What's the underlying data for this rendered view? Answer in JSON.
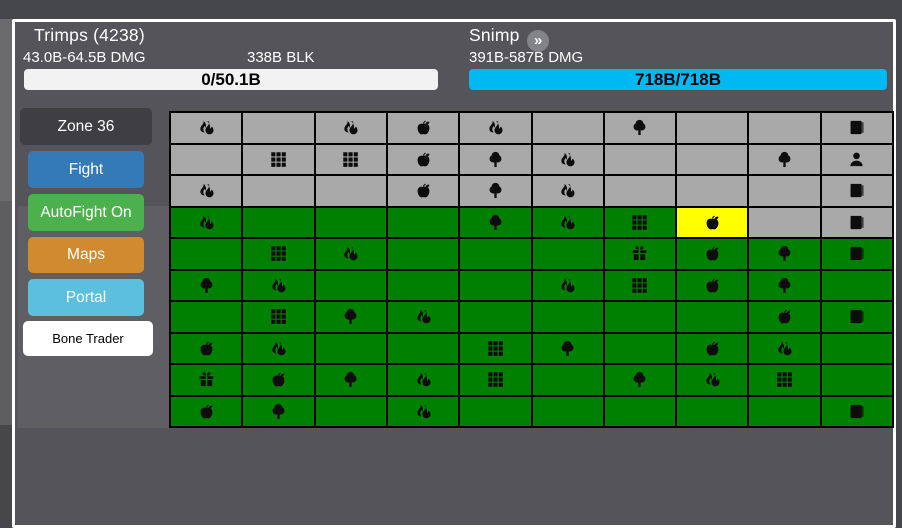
{
  "player": {
    "title": "Trimps (4238)",
    "damage": "43.0B-64.5B DMG",
    "block": "338B BLK",
    "health_bar": {
      "text": "0/50.1B",
      "color": "#f2f2f2"
    }
  },
  "enemy": {
    "name": "Snimp",
    "fast_badge": "»",
    "damage": "391B-587B DMG",
    "health_bar": {
      "text": "718B/718B",
      "color": "#00b8f2"
    }
  },
  "sidebar": {
    "buttons": [
      {
        "label": "Zone 36",
        "color": "#3f3f43"
      },
      {
        "label": "Fight",
        "color": "#337ab7"
      },
      {
        "label": "AutoFight On",
        "color": "#4cb04c"
      },
      {
        "label": "Maps",
        "color": "#cf8b2e"
      },
      {
        "label": "Portal",
        "color": "#5bc0de"
      },
      {
        "label": "Bone Trader",
        "color": "#ffffff",
        "text_color": "#000000"
      }
    ]
  },
  "battle_grid": {
    "rows": 10,
    "columns": 10,
    "cell_colors": {
      "pending": "#a9a9a9",
      "cleared": "#008000",
      "current": "#ffff00"
    },
    "icon_names": [
      "fire",
      "grid",
      "apple",
      "tree",
      "book",
      "person",
      "gift"
    ],
    "cells": [
      [
        "p:fire",
        "p:",
        "p:fire",
        "p:apple",
        "p:fire",
        "p:",
        "p:tree",
        "p:",
        "p:",
        "p:book"
      ],
      [
        "p:",
        "p:grid",
        "p:grid",
        "p:apple",
        "p:tree",
        "p:fire",
        "p:",
        "p:",
        "p:tree",
        "p:person"
      ],
      [
        "p:fire",
        "p:",
        "p:",
        "p:apple",
        "p:tree",
        "p:fire",
        "p:",
        "p:",
        "p:",
        "p:book"
      ],
      [
        "c:fire",
        "c:",
        "c:",
        "c:",
        "c:tree",
        "c:fire",
        "c:grid",
        "u:apple",
        "p:",
        "p:book"
      ],
      [
        "c:",
        "c:grid",
        "c:fire",
        "c:",
        "c:",
        "c:",
        "c:gift",
        "c:apple",
        "c:tree",
        "c:book"
      ],
      [
        "c:tree",
        "c:fire",
        "c:",
        "c:",
        "c:",
        "c:fire",
        "c:grid",
        "c:apple",
        "c:tree",
        "c:"
      ],
      [
        "c:",
        "c:grid",
        "c:tree",
        "c:fire",
        "c:",
        "c:",
        "c:",
        "c:",
        "c:apple",
        "c:book"
      ],
      [
        "c:apple",
        "c:fire",
        "c:",
        "c:",
        "c:grid",
        "c:tree",
        "c:",
        "c:apple",
        "c:fire",
        "c:"
      ],
      [
        "c:gift",
        "c:apple",
        "c:tree",
        "c:fire",
        "c:grid",
        "c:",
        "c:tree",
        "c:fire",
        "c:grid",
        "c:"
      ],
      [
        "c:apple",
        "c:tree",
        "c:",
        "c:fire",
        "c:",
        "c:",
        "c:",
        "c:",
        "c:",
        "c:book"
      ]
    ]
  }
}
